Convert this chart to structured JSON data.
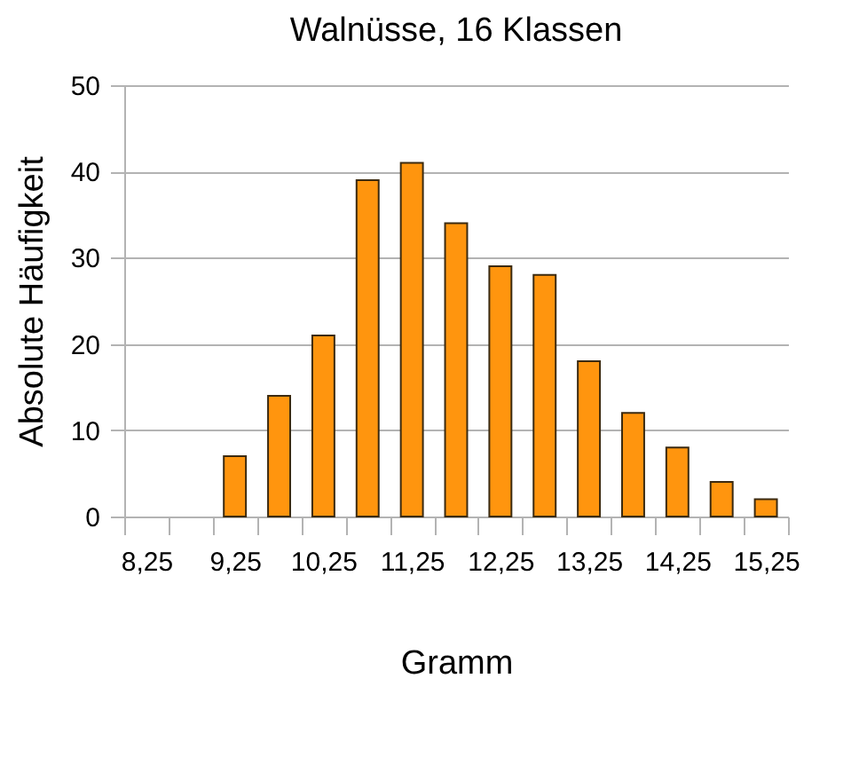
{
  "chart_data": {
    "type": "bar",
    "title": "Walnüsse, 16 Klassen",
    "xlabel": "Gramm",
    "ylabel": "Absolute Häufigkeit",
    "categories": [
      "8,25",
      null,
      "9,25",
      null,
      "10,25",
      null,
      "11,25",
      null,
      "12,25",
      null,
      "13,25",
      null,
      "14,25",
      null,
      "15,25"
    ],
    "values": [
      0,
      0,
      7,
      14,
      21,
      39,
      41,
      34,
      29,
      28,
      18,
      12,
      8,
      4,
      2
    ],
    "color": "#ff950e",
    "ylim": [
      0,
      50
    ],
    "yticks": [
      0,
      10,
      20,
      30,
      40,
      50
    ],
    "grid": "y"
  }
}
